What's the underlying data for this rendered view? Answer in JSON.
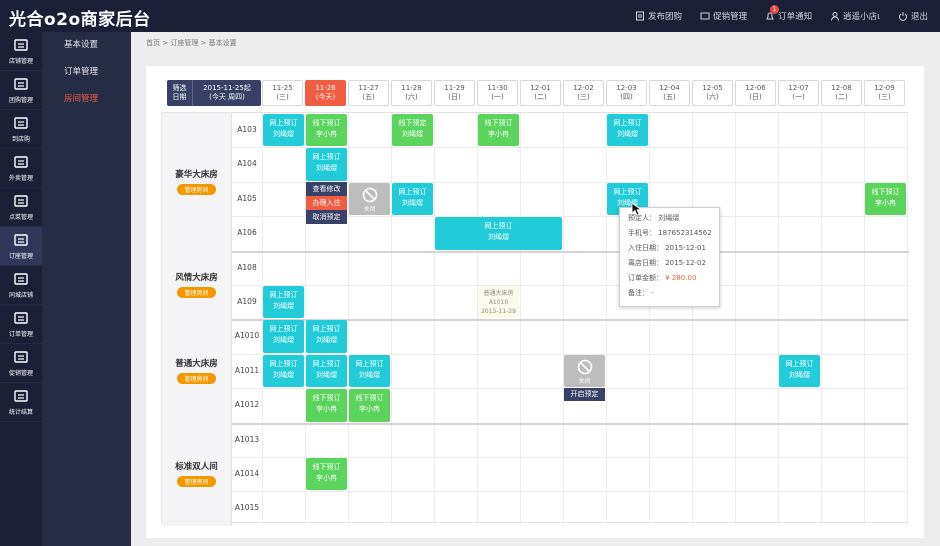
{
  "header": {
    "logo": "光合o2o商家后台",
    "nav": [
      "发布团购",
      "促销管理",
      "订单通知",
      "逍遥小店ι",
      "退出"
    ],
    "badge": "1"
  },
  "sidebar": [
    "店铺管理",
    "团购管理",
    "到店购",
    "外卖管理",
    "点菜管理",
    "订座管理",
    "同城店铺",
    "订单管理",
    "促销管理",
    "统计结算"
  ],
  "submenu": [
    "基本设置",
    "订单管理",
    "房间管理"
  ],
  "breadcrumb": "首页 > 订座管理 > 基本设置",
  "filter": {
    "label": "筛选\n日期",
    "range": "2015-11-25起\n(今天 周四)"
  },
  "dates": [
    {
      "d": "11-25",
      "w": "(三)"
    },
    {
      "d": "11-26",
      "w": "(今天)"
    },
    {
      "d": "11-27",
      "w": "(五)"
    },
    {
      "d": "11-28",
      "w": "(六)"
    },
    {
      "d": "11-29",
      "w": "(日)"
    },
    {
      "d": "11-30",
      "w": "(一)"
    },
    {
      "d": "12-01",
      "w": "(二)"
    },
    {
      "d": "12-02",
      "w": "(三)"
    },
    {
      "d": "12-03",
      "w": "(四)"
    },
    {
      "d": "12-04",
      "w": "(五)"
    },
    {
      "d": "12-05",
      "w": "(六)"
    },
    {
      "d": "12-06",
      "w": "(日)"
    },
    {
      "d": "12-07",
      "w": "(一)"
    },
    {
      "d": "12-08",
      "w": "(二)"
    },
    {
      "d": "12-09",
      "w": "(三)"
    }
  ],
  "manage_label": "管理房间",
  "groups": [
    {
      "name": "豪华大床房",
      "rooms": [
        "A103",
        "A104",
        "A105",
        "A106"
      ]
    },
    {
      "name": "风情大床房",
      "rooms": [
        "A108",
        "A109"
      ]
    },
    {
      "name": "普通大床房",
      "rooms": [
        "A1010",
        "A1011",
        "A1012"
      ]
    },
    {
      "name": "标准双人间",
      "rooms": [
        "A1013",
        "A1014",
        "A1015"
      ]
    }
  ],
  "bookings": [
    {
      "row": 0,
      "col": 1,
      "span": 1,
      "t": "线下预订",
      "n": "李小冉",
      "c": "g"
    },
    {
      "row": 0,
      "col": 0,
      "span": 1,
      "t": "网上预订",
      "n": "刘绳熠",
      "c": "c",
      "h": 0
    },
    {
      "row": 0,
      "col": 3,
      "span": 1,
      "t": "线下预定",
      "n": "刘绳熠",
      "c": "g"
    },
    {
      "row": 0,
      "col": 5,
      "span": 1,
      "t": "线下预订",
      "n": "李小冉",
      "c": "g"
    },
    {
      "row": 0,
      "col": 8,
      "span": 1,
      "t": "网上预订",
      "n": "刘绳熠",
      "c": "c"
    },
    {
      "row": 1,
      "col": 1,
      "span": 1,
      "t": "网上预订",
      "n": "刘绳熠",
      "c": "c"
    },
    {
      "row": 2,
      "col": 3,
      "span": 1,
      "t": "网上预订",
      "n": "刘绳熠",
      "c": "c"
    },
    {
      "row": 2,
      "col": 8,
      "span": 1,
      "t": "网上预订",
      "n": "刘绳熠",
      "c": "c"
    },
    {
      "row": 2,
      "col": 14,
      "span": 1,
      "t": "线下预订",
      "n": "李小冉",
      "c": "g"
    },
    {
      "row": 3,
      "col": 4,
      "span": 3,
      "t": "网上预订",
      "n": "刘绳熠",
      "c": "c"
    },
    {
      "row": 5,
      "col": 0,
      "span": 1,
      "t": "网上预订",
      "n": "刘绳熠",
      "c": "c"
    },
    {
      "row": 6,
      "col": 0,
      "span": 1,
      "t": "网上预订",
      "n": "刘绳熠",
      "c": "c"
    },
    {
      "row": 6,
      "col": 1,
      "span": 1,
      "t": "网上预订",
      "n": "刘绳熠",
      "c": "c"
    },
    {
      "row": 7,
      "col": 0,
      "span": 1,
      "t": "网上预订",
      "n": "刘绳熠",
      "c": "c"
    },
    {
      "row": 7,
      "col": 1,
      "span": 1,
      "t": "网上预订",
      "n": "刘绳熠",
      "c": "c"
    },
    {
      "row": 7,
      "col": 2,
      "span": 1,
      "t": "网上预订",
      "n": "刘绳熠",
      "c": "c"
    },
    {
      "row": 7,
      "col": 12,
      "span": 1,
      "t": "网上预订",
      "n": "刘绳熠",
      "c": "c"
    },
    {
      "row": 8,
      "col": 1,
      "span": 1,
      "t": "线下预订",
      "n": "李小冉",
      "c": "g"
    },
    {
      "row": 8,
      "col": 2,
      "span": 1,
      "t": "线下预订",
      "n": "李小冉",
      "c": "g"
    },
    {
      "row": 10,
      "col": 1,
      "span": 1,
      "t": "线下预订",
      "n": "李小冉",
      "c": "g"
    }
  ],
  "closed_label": "关闭",
  "context_menu": [
    "查看修改",
    "办理入住",
    "取消预定"
  ],
  "open_label": "开启预定",
  "note": "普通大床房\nA1010\n2015-11-29",
  "popup": [
    {
      "k": "预定人：",
      "v": "刘绳熠"
    },
    {
      "k": "手机号：",
      "v": "18765231456​2"
    },
    {
      "k": "入住日期：",
      "v": "2015-12-01"
    },
    {
      "k": "离店日期：",
      "v": "2015-12-02"
    },
    {
      "k": "订单金额：",
      "v": "¥ 280.00",
      "red": true
    },
    {
      "k": "备注：",
      "v": "-"
    }
  ]
}
